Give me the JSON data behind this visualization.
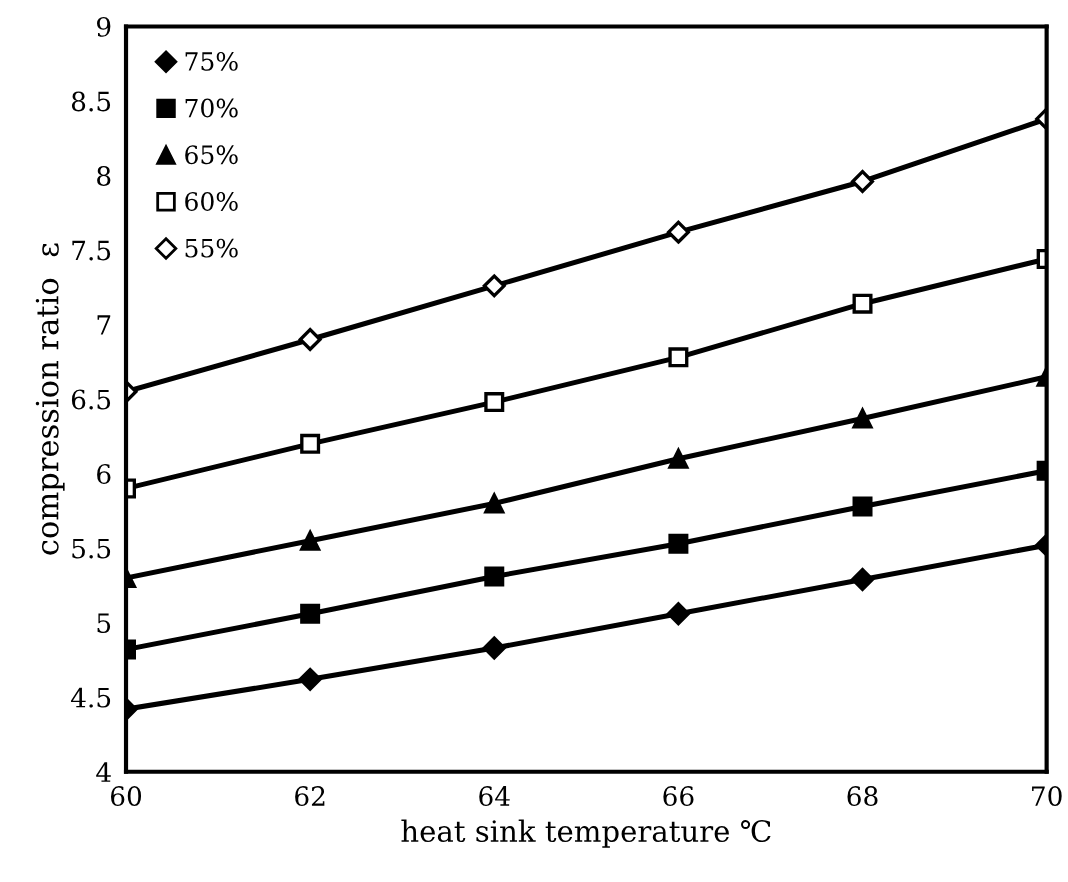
{
  "chart_data": {
    "type": "line",
    "xlabel": "heat sink temperature ℃",
    "ylabel": "compression ratio  ε",
    "x": [
      60,
      62,
      64,
      66,
      68,
      70
    ],
    "series": [
      {
        "name": "75%",
        "color": "#000000",
        "marker": "diamond",
        "values": [
          4.42,
          4.62,
          4.83,
          5.06,
          5.29,
          5.52
        ]
      },
      {
        "name": "70%",
        "color": "#000000",
        "marker": "square",
        "values": [
          4.82,
          5.06,
          5.31,
          5.53,
          5.78,
          6.02
        ]
      },
      {
        "name": "65%",
        "color": "#000000",
        "marker": "triangle",
        "values": [
          5.3,
          5.55,
          5.8,
          6.1,
          6.37,
          6.65
        ]
      },
      {
        "name": "60%",
        "color": "#000000",
        "marker": "square",
        "values": [
          5.9,
          6.2,
          6.48,
          6.78,
          7.14,
          7.44
        ]
      },
      {
        "name": "55%",
        "color": "#000000",
        "marker": "diamond",
        "values": [
          6.55,
          6.9,
          7.26,
          7.62,
          7.96,
          8.38
        ]
      }
    ],
    "xlim": [
      60,
      70
    ],
    "xticks": [
      60,
      62,
      64,
      66,
      68,
      70
    ],
    "ylim": [
      4,
      9
    ],
    "yticks": [
      4,
      {
        "value": 4.5,
        "label": "4.5"
      },
      5,
      {
        "value": 5.5,
        "label": "5.5"
      },
      6,
      {
        "value": 6.5,
        "label": "6.5"
      },
      7,
      {
        "value": 7.5,
        "label": "7.5"
      },
      8,
      {
        "value": 8.5,
        "label": "8.5"
      },
      9
    ],
    "grid": false,
    "legend": "top left",
    "line_style": "solid"
  }
}
